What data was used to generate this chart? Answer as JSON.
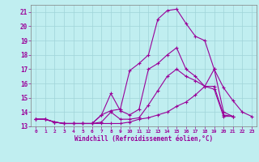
{
  "xlabel": "Windchill (Refroidissement éolien,°C)",
  "bg_color": "#c0eef0",
  "grid_color": "#a0d4d8",
  "line_color": "#990099",
  "marker": "+",
  "xlim": [
    -0.5,
    23.5
  ],
  "ylim": [
    13,
    21.5
  ],
  "xticks": [
    0,
    1,
    2,
    3,
    4,
    5,
    6,
    7,
    8,
    9,
    10,
    11,
    12,
    13,
    14,
    15,
    16,
    17,
    18,
    19,
    20,
    21,
    22,
    23
  ],
  "yticks": [
    13,
    14,
    15,
    16,
    17,
    18,
    19,
    20,
    21
  ],
  "series": [
    [
      13.5,
      13.5,
      13.3,
      13.2,
      13.2,
      13.2,
      13.2,
      13.8,
      15.3,
      14.1,
      13.8,
      14.2,
      17.0,
      17.4,
      18.0,
      18.5,
      17.0,
      16.5,
      15.8,
      17.0,
      14.0,
      13.7
    ],
    [
      13.5,
      13.5,
      13.3,
      13.2,
      13.2,
      13.2,
      13.2,
      13.3,
      14.0,
      13.5,
      13.5,
      13.6,
      14.5,
      15.5,
      16.5,
      17.0,
      16.5,
      16.2,
      15.8,
      15.8,
      13.8,
      13.7
    ],
    [
      13.5,
      13.5,
      13.3,
      13.2,
      13.2,
      13.2,
      13.2,
      13.8,
      14.1,
      14.2,
      16.9,
      17.4,
      18.0,
      20.5,
      21.1,
      21.2,
      20.2,
      19.3,
      19.0,
      17.0,
      15.7,
      14.8,
      14.0,
      13.7
    ],
    [
      13.5,
      13.5,
      13.3,
      13.2,
      13.2,
      13.2,
      13.2,
      13.2,
      13.2,
      13.2,
      13.3,
      13.5,
      13.6,
      13.8,
      14.0,
      14.4,
      14.7,
      15.2,
      15.8,
      15.6,
      13.7,
      13.7
    ]
  ],
  "series_x": [
    [
      0,
      1,
      2,
      3,
      4,
      5,
      6,
      7,
      8,
      9,
      10,
      11,
      12,
      13,
      14,
      15,
      16,
      17,
      18,
      19,
      20,
      21
    ],
    [
      0,
      1,
      2,
      3,
      4,
      5,
      6,
      7,
      8,
      9,
      10,
      11,
      12,
      13,
      14,
      15,
      16,
      17,
      18,
      19,
      20,
      21
    ],
    [
      0,
      1,
      2,
      3,
      4,
      5,
      6,
      7,
      8,
      9,
      10,
      11,
      12,
      13,
      14,
      15,
      16,
      17,
      18,
      19,
      20,
      21,
      22,
      23
    ],
    [
      0,
      1,
      2,
      3,
      4,
      5,
      6,
      7,
      8,
      9,
      10,
      11,
      12,
      13,
      14,
      15,
      16,
      17,
      18,
      19,
      20,
      21
    ]
  ]
}
